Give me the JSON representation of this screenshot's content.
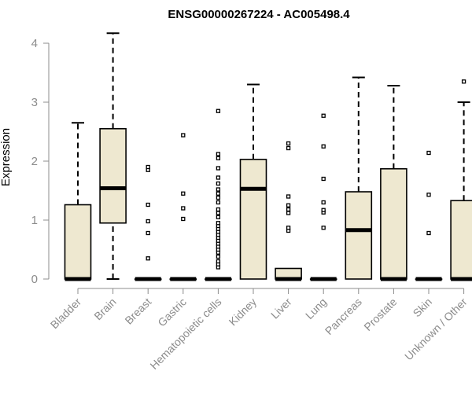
{
  "chart_data": {
    "type": "boxplot",
    "title": "ENSG00000267224 - AC005498.4",
    "ylabel": "Expression",
    "xlabel": "",
    "ylim": [
      0,
      4.2
    ],
    "yticks": [
      0,
      1,
      2,
      3,
      4
    ],
    "colors": {
      "box_fill": "#EEE8D0",
      "stroke": "#000000",
      "axis_text": "#8C8C8C"
    },
    "categories": [
      "Bladder",
      "Brain",
      "Breast",
      "Gastric",
      "Hematopoietic cells",
      "Kidney",
      "Liver",
      "Lung",
      "Pancreas",
      "Prostate",
      "Skin",
      "Unknown / Other"
    ],
    "boxes": [
      {
        "min": 0,
        "q1": 0,
        "median": 0,
        "q3": 1.26,
        "max": 2.65,
        "outliers": []
      },
      {
        "min": 0,
        "q1": 0.95,
        "median": 1.54,
        "q3": 2.55,
        "max": 4.17,
        "outliers": []
      },
      {
        "min": 0,
        "q1": 0,
        "median": 0,
        "q3": 0,
        "max": 0,
        "outliers": [
          0.35,
          0.78,
          0.98,
          1.26,
          1.85,
          1.9
        ]
      },
      {
        "min": 0,
        "q1": 0,
        "median": 0,
        "q3": 0,
        "max": 0,
        "outliers": [
          1.02,
          1.2,
          1.45,
          2.44
        ]
      },
      {
        "min": 0,
        "q1": 0,
        "median": 0,
        "q3": 0,
        "max": 0,
        "outliers": [
          0.2,
          0.25,
          0.3,
          0.38,
          0.45,
          0.5,
          0.55,
          0.6,
          0.65,
          0.7,
          0.75,
          0.8,
          0.85,
          0.9,
          0.95,
          1.05,
          1.12,
          1.18,
          1.3,
          1.38,
          1.45,
          1.52,
          1.62,
          1.72,
          1.88,
          2.05,
          2.12,
          2.85
        ]
      },
      {
        "min": 0,
        "q1": 0,
        "median": 1.53,
        "q3": 2.03,
        "max": 3.3,
        "outliers": []
      },
      {
        "min": 0,
        "q1": 0,
        "median": 0,
        "q3": 0.18,
        "max": 0.18,
        "outliers": [
          0.82,
          0.87,
          1.12,
          1.18,
          1.25,
          1.4,
          2.22,
          2.3
        ]
      },
      {
        "min": 0,
        "q1": 0,
        "median": 0,
        "q3": 0,
        "max": 0,
        "outliers": [
          0.87,
          1.13,
          1.17,
          1.3,
          1.7,
          2.25,
          2.77
        ]
      },
      {
        "min": 0,
        "q1": 0,
        "median": 0.83,
        "q3": 1.48,
        "max": 3.42,
        "outliers": []
      },
      {
        "min": 0,
        "q1": 0,
        "median": 0,
        "q3": 1.87,
        "max": 3.28,
        "outliers": []
      },
      {
        "min": 0,
        "q1": 0,
        "median": 0,
        "q3": 0,
        "max": 0,
        "outliers": [
          0.78,
          1.43,
          2.14
        ]
      },
      {
        "min": 0,
        "q1": 0,
        "median": 0,
        "q3": 1.33,
        "max": 3.0,
        "outliers": [
          3.35
        ]
      }
    ]
  }
}
